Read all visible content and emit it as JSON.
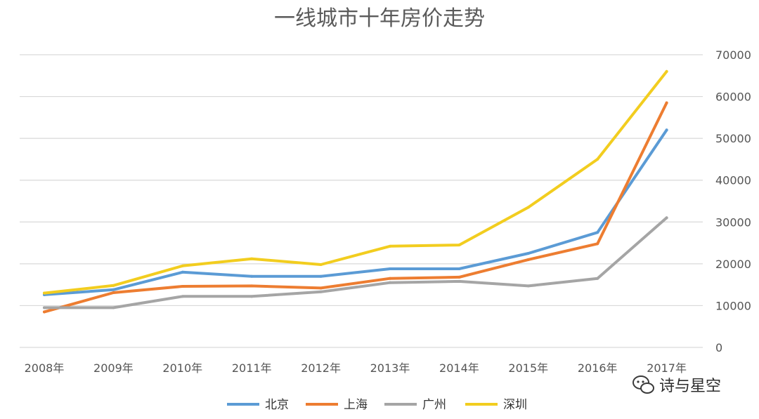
{
  "chart_data": {
    "type": "line",
    "title": "一线城市十年房价走势",
    "categories": [
      "2008年",
      "2009年",
      "2010年",
      "2011年",
      "2012年",
      "2013年",
      "2014年",
      "2015年",
      "2016年",
      "2017年"
    ],
    "series": [
      {
        "name": "北京",
        "color": "#5b9bd5",
        "values": [
          12600,
          13800,
          18000,
          17000,
          17000,
          18800,
          18800,
          22500,
          27500,
          52000
        ]
      },
      {
        "name": "上海",
        "color": "#ed7d31",
        "values": [
          8500,
          13100,
          14600,
          14700,
          14200,
          16500,
          16800,
          21000,
          24800,
          58500
        ]
      },
      {
        "name": "广州",
        "color": "#a5a5a5",
        "values": [
          9500,
          9500,
          12200,
          12200,
          13300,
          15500,
          15800,
          14700,
          16500,
          31000
        ]
      },
      {
        "name": "深圳",
        "color": "#f2cd1f",
        "values": [
          13000,
          14800,
          19500,
          21200,
          19800,
          24200,
          24500,
          33500,
          45000,
          66000
        ]
      }
    ],
    "yticks": [
      0,
      10000,
      20000,
      30000,
      40000,
      50000,
      60000,
      70000
    ],
    "ylim": [
      0,
      70000
    ],
    "grid": true,
    "y_axis_side": "right",
    "legend_position": "bottom"
  },
  "watermark": {
    "text": "诗与星空",
    "icon": "wechat-icon"
  }
}
